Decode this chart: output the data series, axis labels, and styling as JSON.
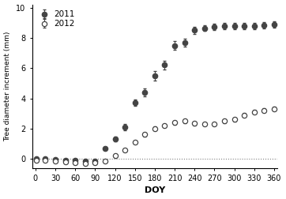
{
  "title": "",
  "xlabel": "DOY",
  "ylabel": "Tree diameter increment (mm)",
  "xlim": [
    -5,
    365
  ],
  "ylim": [
    -0.6,
    10.2
  ],
  "yticks": [
    0,
    2,
    4,
    6,
    8,
    10
  ],
  "xticks": [
    0,
    30,
    60,
    90,
    120,
    150,
    180,
    210,
    240,
    270,
    300,
    330,
    360
  ],
  "doy_2011": [
    1,
    15,
    30,
    45,
    60,
    75,
    90,
    105,
    120,
    135,
    150,
    165,
    180,
    195,
    210,
    225,
    240,
    255,
    270,
    285,
    300,
    315,
    330,
    345,
    360
  ],
  "val_2011": [
    0.0,
    0.0,
    -0.05,
    -0.1,
    -0.1,
    -0.15,
    -0.15,
    0.7,
    1.3,
    2.1,
    3.7,
    4.4,
    5.5,
    6.2,
    7.5,
    7.7,
    8.5,
    8.65,
    8.75,
    8.8,
    8.8,
    8.8,
    8.8,
    8.85,
    8.9
  ],
  "err_2011": [
    0.05,
    0.05,
    0.05,
    0.05,
    0.05,
    0.05,
    0.05,
    0.1,
    0.15,
    0.2,
    0.2,
    0.25,
    0.3,
    0.3,
    0.3,
    0.25,
    0.25,
    0.2,
    0.2,
    0.2,
    0.2,
    0.2,
    0.2,
    0.2,
    0.2
  ],
  "doy_2012": [
    1,
    15,
    30,
    45,
    60,
    75,
    90,
    105,
    120,
    135,
    150,
    165,
    180,
    195,
    210,
    225,
    240,
    255,
    270,
    285,
    300,
    315,
    330,
    345,
    360
  ],
  "val_2012": [
    -0.1,
    -0.1,
    -0.15,
    -0.2,
    -0.25,
    -0.3,
    -0.25,
    -0.15,
    0.2,
    0.6,
    1.1,
    1.6,
    2.0,
    2.2,
    2.4,
    2.5,
    2.35,
    2.3,
    2.3,
    2.5,
    2.6,
    2.9,
    3.1,
    3.2,
    3.3
  ],
  "err_2012": [
    0.05,
    0.05,
    0.05,
    0.05,
    0.05,
    0.05,
    0.08,
    0.08,
    0.1,
    0.1,
    0.12,
    0.12,
    0.13,
    0.13,
    0.13,
    0.13,
    0.13,
    0.12,
    0.12,
    0.13,
    0.13,
    0.13,
    0.13,
    0.13,
    0.13
  ],
  "color": "#444444",
  "marker": "o",
  "legend_2011": "2011",
  "legend_2012": "2012",
  "dotted_line_y": 0.0,
  "background_color": "#ffffff"
}
